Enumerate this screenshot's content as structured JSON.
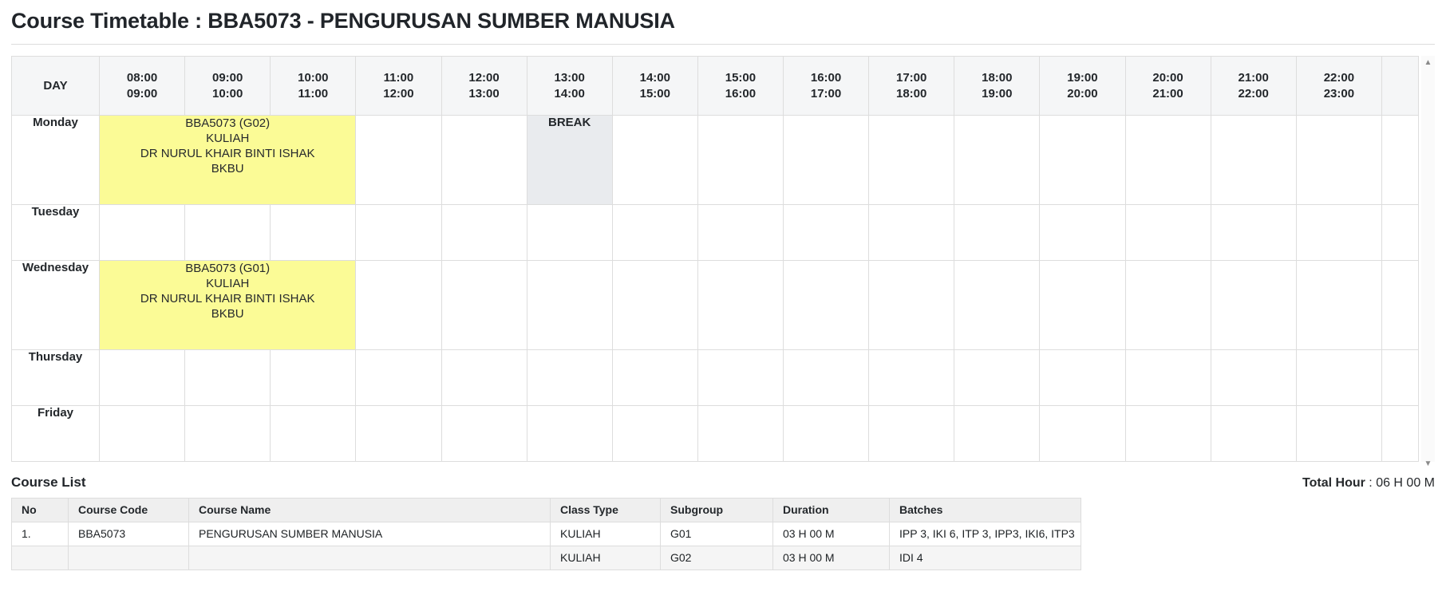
{
  "page": {
    "title": "Course Timetable : BBA5073 - PENGURUSAN SUMBER MANUSIA"
  },
  "timetable": {
    "day_header": "DAY",
    "time_slots": [
      {
        "start": "08:00",
        "end": "09:00"
      },
      {
        "start": "09:00",
        "end": "10:00"
      },
      {
        "start": "10:00",
        "end": "11:00"
      },
      {
        "start": "11:00",
        "end": "12:00"
      },
      {
        "start": "12:00",
        "end": "13:00"
      },
      {
        "start": "13:00",
        "end": "14:00"
      },
      {
        "start": "14:00",
        "end": "15:00"
      },
      {
        "start": "15:00",
        "end": "16:00"
      },
      {
        "start": "16:00",
        "end": "17:00"
      },
      {
        "start": "17:00",
        "end": "18:00"
      },
      {
        "start": "18:00",
        "end": "19:00"
      },
      {
        "start": "19:00",
        "end": "20:00"
      },
      {
        "start": "20:00",
        "end": "21:00"
      },
      {
        "start": "21:00",
        "end": "22:00"
      },
      {
        "start": "22:00",
        "end": "23:00"
      }
    ],
    "days": [
      "Monday",
      "Tuesday",
      "Wednesday",
      "Thursday",
      "Friday"
    ],
    "events": [
      {
        "day": "Monday",
        "slot_index": 0,
        "colspan": 3,
        "lines": [
          "BBA5073 (G02)",
          "KULIAH",
          "DR NURUL KHAIR BINTI ISHAK",
          "BKBU"
        ]
      },
      {
        "day": "Wednesday",
        "slot_index": 0,
        "colspan": 3,
        "lines": [
          "BBA5073 (G01)",
          "KULIAH",
          "DR NURUL KHAIR BINTI ISHAK",
          "BKBU"
        ]
      }
    ],
    "breaks": [
      {
        "day": "Monday",
        "slot_index": 5,
        "label": "BREAK"
      }
    ],
    "scrollbar": {
      "up_icon": "▲",
      "down_icon": "▼"
    }
  },
  "course_list": {
    "heading": "Course List",
    "total_hour": {
      "label": "Total Hour",
      "separator": " : ",
      "value": "06 H 00 M"
    },
    "columns": [
      "No",
      "Course Code",
      "Course Name",
      "Class Type",
      "Subgroup",
      "Duration",
      "Batches"
    ],
    "rows": [
      [
        "1.",
        "BBA5073",
        "PENGURUSAN SUMBER MANUSIA",
        "KULIAH",
        "G01",
        "03 H 00 M",
        "IPP 3, IKI 6, ITP 3, IPP3, IKI6, ITP3"
      ],
      [
        "",
        "",
        "",
        "KULIAH",
        "G02",
        "03 H 00 M",
        "IDI 4"
      ]
    ]
  },
  "colors": {
    "event_bg": "#fbfb96",
    "break_bg": "#e9ebee",
    "header_bg": "#f5f6f7",
    "course_header_bg": "#efefef",
    "stripe_bg": "#f5f5f5",
    "border": "#dddddd"
  }
}
